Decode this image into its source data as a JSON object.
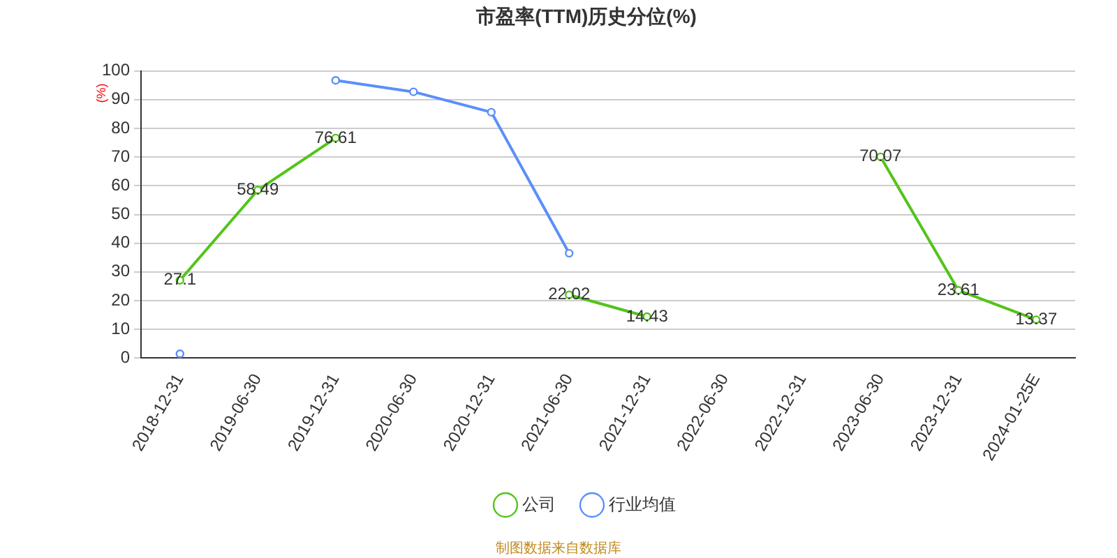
{
  "chart_data": {
    "type": "line",
    "title": "市盈率(TTM)历史分位(%)",
    "ylabel": "(%)",
    "categories": [
      "2018-12-31",
      "2019-06-30",
      "2019-12-31",
      "2020-06-30",
      "2020-12-31",
      "2021-06-30",
      "2021-12-31",
      "2022-06-30",
      "2022-12-31",
      "2023-06-30",
      "2023-12-31",
      "2024-01-25E"
    ],
    "series": [
      {
        "name": "公司",
        "color": "#52c41a",
        "values": [
          27.1,
          58.49,
          76.61,
          null,
          null,
          22.02,
          14.43,
          null,
          null,
          70.07,
          23.61,
          13.37
        ],
        "value_labels": [
          "27.1",
          "58.49",
          "76.61",
          null,
          null,
          "22.02",
          "14.43",
          null,
          null,
          "70.07",
          "23.61",
          "13.37"
        ]
      },
      {
        "name": "行业均值",
        "color": "#5b8ff9",
        "values": [
          1.5,
          null,
          96.7,
          92.7,
          85.6,
          36.5,
          null,
          null,
          null,
          null,
          null,
          null
        ]
      }
    ],
    "ylim": [
      0,
      100
    ],
    "yticks": [
      0,
      10,
      20,
      30,
      40,
      50,
      60,
      70,
      80,
      90,
      100
    ],
    "grid": "y",
    "legend": "bottom",
    "marker": "circle",
    "line_style": "solid",
    "annotations": [
      "制图数据来自数据库"
    ]
  }
}
